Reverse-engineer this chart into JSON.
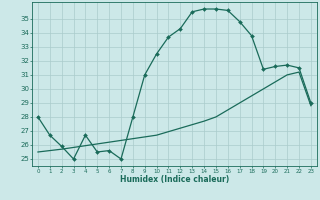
{
  "title": "",
  "xlabel": "Humidex (Indice chaleur)",
  "bg_color": "#cce8e8",
  "grid_color": "#aacccc",
  "line_color": "#1a6b5a",
  "xlim": [
    -0.5,
    23.5
  ],
  "ylim": [
    24.5,
    36.2
  ],
  "xticks": [
    0,
    1,
    2,
    3,
    4,
    5,
    6,
    7,
    8,
    9,
    10,
    11,
    12,
    13,
    14,
    15,
    16,
    17,
    18,
    19,
    20,
    21,
    22,
    23
  ],
  "yticks": [
    25,
    26,
    27,
    28,
    29,
    30,
    31,
    32,
    33,
    34,
    35
  ],
  "curve1_x": [
    0,
    1,
    2,
    3,
    4,
    5,
    6,
    7,
    8,
    9,
    10,
    11,
    12,
    13,
    14,
    15,
    16,
    17,
    18,
    19,
    20,
    21,
    22,
    23
  ],
  "curve1_y": [
    28.0,
    26.7,
    25.9,
    25.0,
    26.7,
    25.5,
    25.6,
    25.0,
    28.0,
    31.0,
    32.5,
    33.7,
    34.3,
    35.5,
    35.7,
    35.7,
    35.6,
    34.8,
    33.8,
    31.4,
    31.6,
    31.7,
    31.5,
    29.0
  ],
  "curve2_x": [
    0,
    2,
    10,
    14,
    15,
    16,
    19,
    20,
    21,
    22,
    23
  ],
  "curve2_y": [
    25.5,
    25.7,
    26.7,
    27.7,
    28.0,
    28.5,
    30.0,
    30.5,
    31.0,
    31.2,
    28.8
  ]
}
